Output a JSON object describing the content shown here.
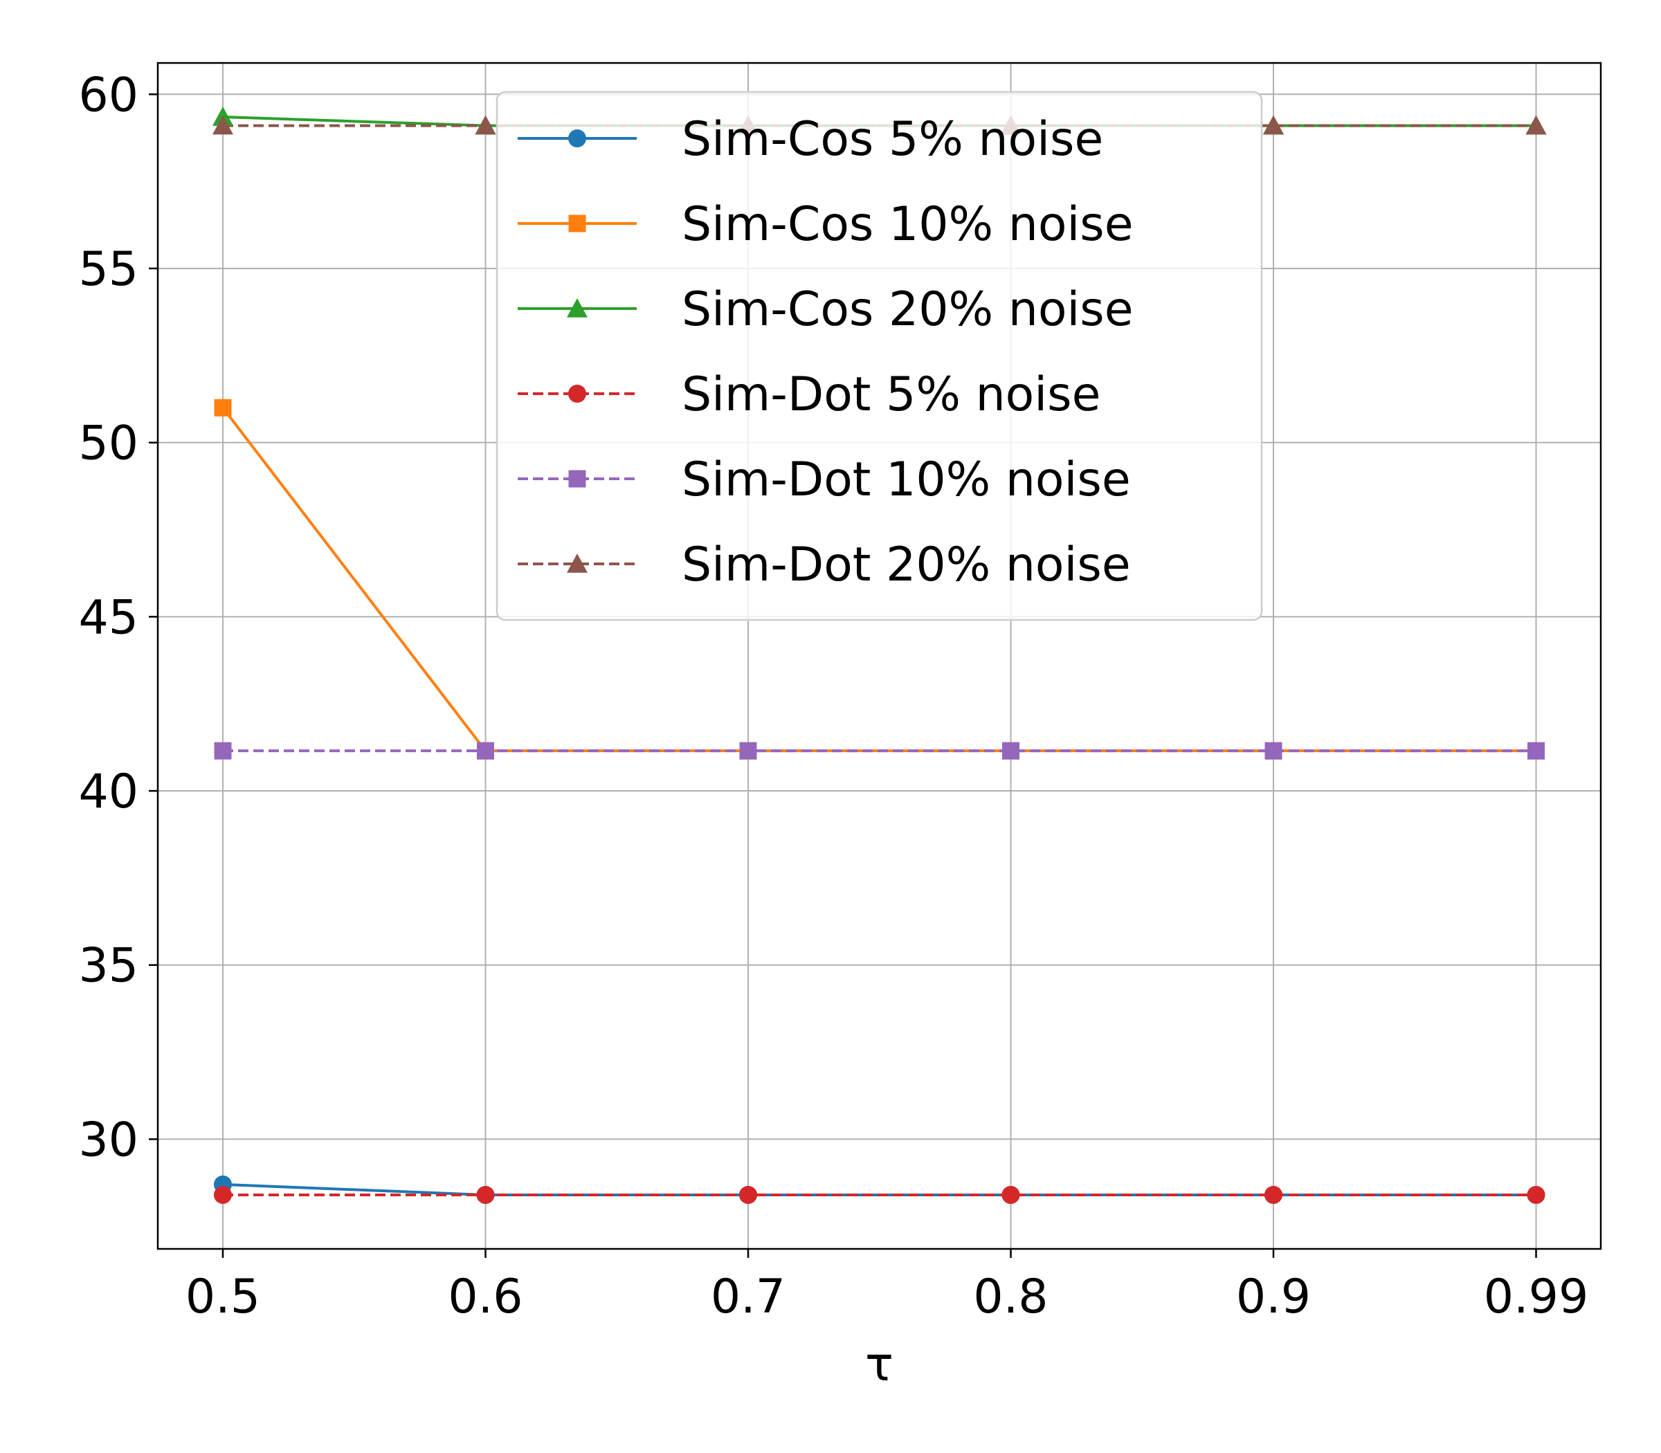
{
  "chart_data": {
    "type": "line",
    "title": "",
    "xlabel": "τ",
    "ylabel": "",
    "x_categories": [
      "0.5",
      "0.6",
      "0.7",
      "0.8",
      "0.9",
      "0.99"
    ],
    "yticks": [
      30,
      35,
      40,
      45,
      50,
      55,
      60
    ],
    "ylim": [
      26.85,
      60.9
    ],
    "grid": true,
    "legend_position": "upper-center",
    "series": [
      {
        "name": "Sim-Cos 5% noise",
        "color": "#1f77b4",
        "marker": "circle",
        "linestyle": "solid",
        "values": [
          28.7,
          28.4,
          28.4,
          28.4,
          28.4,
          28.4
        ]
      },
      {
        "name": "Sim-Cos 10% noise",
        "color": "#ff7f0e",
        "marker": "square",
        "linestyle": "solid",
        "values": [
          51.0,
          41.15,
          41.15,
          41.15,
          41.15,
          41.15
        ]
      },
      {
        "name": "Sim-Cos 20% noise",
        "color": "#2ca02c",
        "marker": "triangle",
        "linestyle": "solid",
        "values": [
          59.35,
          59.1,
          59.1,
          59.1,
          59.1,
          59.1
        ]
      },
      {
        "name": "Sim-Dot 5% noise",
        "color": "#d62728",
        "marker": "circle",
        "linestyle": "dashed",
        "values": [
          28.4,
          28.4,
          28.4,
          28.4,
          28.4,
          28.4
        ]
      },
      {
        "name": "Sim-Dot 10% noise",
        "color": "#9467bd",
        "marker": "square",
        "linestyle": "dashed",
        "values": [
          41.15,
          41.15,
          41.15,
          41.15,
          41.15,
          41.15
        ]
      },
      {
        "name": "Sim-Dot 20% noise",
        "color": "#8c564b",
        "marker": "triangle",
        "linestyle": "dashed",
        "values": [
          59.1,
          59.1,
          59.1,
          59.1,
          59.1,
          59.1
        ]
      }
    ]
  }
}
